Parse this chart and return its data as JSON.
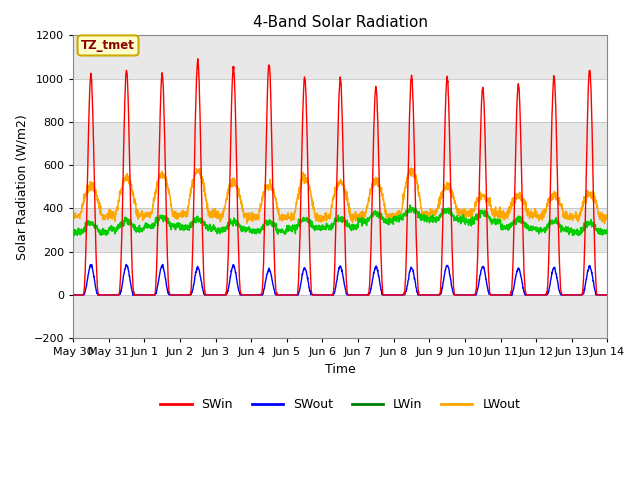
{
  "title": "4-Band Solar Radiation",
  "xlabel": "Time",
  "ylabel": "Solar Radiation (W/m2)",
  "ylim": [
    -200,
    1200
  ],
  "annotation_text": "TZ_tmet",
  "x_tick_labels": [
    "May 30",
    "May 31",
    "Jun 1",
    "Jun 2",
    "Jun 3",
    "Jun 4",
    "Jun 5",
    "Jun 6",
    "Jun 7",
    "Jun 8",
    "Jun 9",
    "Jun 10",
    "Jun 11",
    "Jun 12",
    "Jun 13",
    "Jun 14"
  ],
  "legend_labels": [
    "SWin",
    "SWout",
    "LWin",
    "LWout"
  ],
  "legend_colors": [
    "red",
    "blue",
    "green",
    "orange"
  ],
  "SWin_color": "#ff0000",
  "SWout_color": "#0000ff",
  "LWin_color": "#00cc00",
  "LWout_color": "#ffa500",
  "n_days": 15,
  "points_per_day": 144,
  "band_colors": [
    "#e8e8e8",
    "#ffffff"
  ],
  "yticks": [
    -200,
    0,
    200,
    400,
    600,
    800,
    1000,
    1200
  ],
  "title_fontsize": 11,
  "label_fontsize": 9,
  "tick_fontsize": 8
}
